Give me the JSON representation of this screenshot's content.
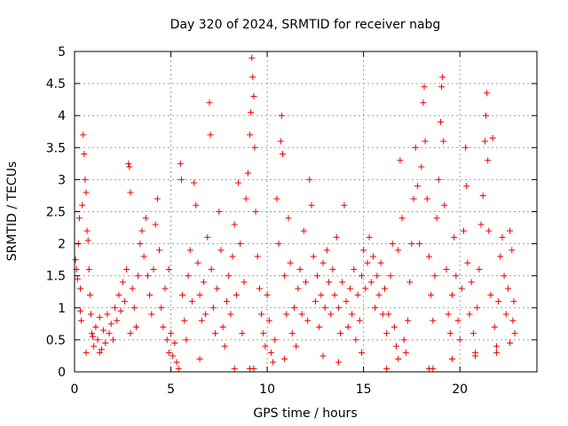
{
  "chart_data": {
    "type": "scatter",
    "title": "Day 320 of 2024, SRMTID for receiver nabg",
    "xlabel": "GPS time / hours",
    "ylabel": "SRMTID / TECUs",
    "xlim": [
      0,
      24
    ],
    "ylim": [
      0,
      5
    ],
    "xticks": [
      0,
      5,
      10,
      15,
      20
    ],
    "yticks": [
      0,
      0.5,
      1,
      1.5,
      2,
      2.5,
      3,
      3.5,
      4,
      4.5,
      5
    ],
    "xtick_labels": [
      "0",
      "5",
      "10",
      "15",
      "20"
    ],
    "ytick_labels": [
      "0",
      "0.5",
      "1",
      "1.5",
      "2",
      "2.5",
      "3",
      "3.5",
      "4",
      "4.5",
      "5"
    ],
    "grid": true,
    "marker": "plus",
    "color": "#ee0000",
    "series": [
      {
        "name": "SRMTID",
        "points": [
          [
            0.05,
            1.75
          ],
          [
            0.1,
            1.6
          ],
          [
            0.15,
            1.45
          ],
          [
            0.2,
            2.0
          ],
          [
            0.25,
            2.4
          ],
          [
            0.3,
            1.3
          ],
          [
            0.35,
            0.8
          ],
          [
            0.4,
            2.6
          ],
          [
            0.45,
            3.7
          ],
          [
            0.5,
            3.4
          ],
          [
            0.55,
            3.0
          ],
          [
            0.6,
            2.8
          ],
          [
            0.65,
            2.2
          ],
          [
            0.7,
            2.05
          ],
          [
            0.75,
            1.6
          ],
          [
            0.8,
            1.2
          ],
          [
            0.85,
            0.9
          ],
          [
            0.9,
            0.6
          ],
          [
            0.95,
            0.55
          ],
          [
            1.0,
            0.4
          ],
          [
            1.1,
            0.7
          ],
          [
            1.2,
            0.5
          ],
          [
            1.3,
            0.85
          ],
          [
            1.4,
            0.35
          ],
          [
            1.5,
            0.65
          ],
          [
            1.6,
            0.45
          ],
          [
            1.7,
            0.9
          ],
          [
            1.8,
            0.6
          ],
          [
            1.9,
            0.75
          ],
          [
            2.0,
            0.5
          ],
          [
            2.1,
            1.0
          ],
          [
            2.2,
            0.8
          ],
          [
            2.3,
            1.2
          ],
          [
            2.4,
            0.95
          ],
          [
            2.5,
            1.4
          ],
          [
            2.6,
            1.1
          ],
          [
            2.7,
            1.6
          ],
          [
            2.8,
            3.25
          ],
          [
            2.85,
            3.2
          ],
          [
            2.9,
            2.8
          ],
          [
            3.0,
            1.3
          ],
          [
            3.1,
            1.0
          ],
          [
            3.2,
            0.7
          ],
          [
            3.3,
            1.5
          ],
          [
            3.4,
            2.0
          ],
          [
            3.5,
            2.2
          ],
          [
            3.6,
            1.8
          ],
          [
            3.7,
            2.4
          ],
          [
            3.8,
            1.5
          ],
          [
            3.9,
            1.2
          ],
          [
            4.0,
            0.9
          ],
          [
            4.1,
            1.6
          ],
          [
            4.2,
            2.3
          ],
          [
            4.3,
            2.7
          ],
          [
            4.4,
            1.9
          ],
          [
            4.5,
            1.0
          ],
          [
            4.6,
            0.7
          ],
          [
            4.7,
            1.3
          ],
          [
            4.8,
            0.5
          ],
          [
            4.9,
            0.3
          ],
          [
            5.0,
            0.6
          ],
          [
            5.1,
            0.25
          ],
          [
            5.2,
            0.45
          ],
          [
            5.3,
            0.15
          ],
          [
            5.4,
            0.05
          ],
          [
            5.5,
            3.25
          ],
          [
            5.55,
            3.0
          ],
          [
            5.6,
            1.2
          ],
          [
            5.7,
            0.8
          ],
          [
            5.8,
            0.5
          ],
          [
            5.9,
            1.5
          ],
          [
            6.0,
            1.9
          ],
          [
            6.1,
            1.1
          ],
          [
            6.2,
            2.95
          ],
          [
            6.3,
            2.6
          ],
          [
            6.4,
            1.7
          ],
          [
            6.5,
            1.2
          ],
          [
            6.6,
            0.8
          ],
          [
            6.7,
            1.4
          ],
          [
            6.8,
            0.9
          ],
          [
            6.9,
            2.1
          ],
          [
            7.0,
            4.2
          ],
          [
            7.05,
            3.7
          ],
          [
            7.1,
            1.6
          ],
          [
            7.2,
            1.0
          ],
          [
            7.3,
            0.6
          ],
          [
            7.4,
            1.3
          ],
          [
            7.5,
            2.5
          ],
          [
            7.6,
            1.9
          ],
          [
            7.7,
            0.7
          ],
          [
            7.8,
            0.4
          ],
          [
            7.9,
            1.1
          ],
          [
            8.0,
            1.5
          ],
          [
            8.1,
            0.9
          ],
          [
            8.2,
            1.8
          ],
          [
            8.3,
            2.3
          ],
          [
            8.4,
            1.2
          ],
          [
            8.5,
            2.95
          ],
          [
            8.6,
            2.0
          ],
          [
            8.7,
            0.6
          ],
          [
            8.8,
            1.4
          ],
          [
            8.9,
            2.7
          ],
          [
            9.0,
            3.1
          ],
          [
            9.1,
            3.7
          ],
          [
            9.15,
            4.05
          ],
          [
            9.2,
            4.9
          ],
          [
            9.25,
            4.6
          ],
          [
            9.3,
            4.3
          ],
          [
            9.35,
            3.5
          ],
          [
            9.4,
            2.5
          ],
          [
            9.5,
            1.8
          ],
          [
            9.6,
            1.3
          ],
          [
            9.7,
            0.9
          ],
          [
            9.8,
            0.6
          ],
          [
            9.9,
            0.4
          ],
          [
            10.0,
            1.2
          ],
          [
            10.1,
            0.8
          ],
          [
            10.2,
            0.3
          ],
          [
            10.3,
            0.15
          ],
          [
            10.4,
            0.5
          ],
          [
            10.5,
            2.7
          ],
          [
            10.6,
            2.0
          ],
          [
            10.7,
            3.6
          ],
          [
            10.75,
            4.0
          ],
          [
            10.8,
            3.4
          ],
          [
            10.9,
            1.5
          ],
          [
            11.0,
            0.9
          ],
          [
            11.1,
            2.4
          ],
          [
            11.2,
            1.7
          ],
          [
            11.3,
            0.6
          ],
          [
            11.4,
            1.0
          ],
          [
            11.5,
            0.4
          ],
          [
            11.6,
            1.3
          ],
          [
            11.7,
            1.6
          ],
          [
            11.8,
            0.9
          ],
          [
            11.9,
            2.2
          ],
          [
            12.0,
            1.4
          ],
          [
            12.1,
            0.8
          ],
          [
            12.2,
            3.0
          ],
          [
            12.3,
            2.6
          ],
          [
            12.4,
            1.8
          ],
          [
            12.5,
            1.1
          ],
          [
            12.6,
            1.5
          ],
          [
            12.7,
            0.7
          ],
          [
            12.8,
            1.2
          ],
          [
            12.9,
            1.7
          ],
          [
            13.0,
            1.0
          ],
          [
            13.1,
            1.9
          ],
          [
            13.2,
            1.4
          ],
          [
            13.3,
            0.9
          ],
          [
            13.4,
            1.6
          ],
          [
            13.5,
            1.2
          ],
          [
            13.6,
            2.1
          ],
          [
            13.7,
            1.0
          ],
          [
            13.8,
            0.6
          ],
          [
            13.9,
            1.4
          ],
          [
            14.0,
            2.6
          ],
          [
            14.1,
            1.1
          ],
          [
            14.2,
            0.7
          ],
          [
            14.3,
            1.3
          ],
          [
            14.4,
            0.9
          ],
          [
            14.5,
            1.6
          ],
          [
            14.6,
            0.5
          ],
          [
            14.7,
            1.2
          ],
          [
            14.8,
            0.8
          ],
          [
            14.9,
            1.5
          ],
          [
            15.0,
            1.9
          ],
          [
            15.1,
            1.3
          ],
          [
            15.2,
            1.7
          ],
          [
            15.3,
            2.1
          ],
          [
            15.4,
            1.4
          ],
          [
            15.5,
            1.8
          ],
          [
            15.6,
            1.0
          ],
          [
            15.7,
            1.5
          ],
          [
            15.8,
            1.2
          ],
          [
            15.9,
            1.7
          ],
          [
            16.0,
            0.9
          ],
          [
            16.1,
            1.3
          ],
          [
            16.2,
            0.6
          ],
          [
            16.3,
            0.9
          ],
          [
            16.4,
            1.5
          ],
          [
            16.5,
            2.0
          ],
          [
            16.6,
            0.7
          ],
          [
            16.7,
            0.4
          ],
          [
            16.8,
            1.9
          ],
          [
            16.9,
            3.3
          ],
          [
            17.0,
            2.4
          ],
          [
            17.1,
            0.5
          ],
          [
            17.2,
            0.3
          ],
          [
            17.3,
            0.8
          ],
          [
            17.4,
            1.4
          ],
          [
            17.5,
            2.0
          ],
          [
            17.6,
            2.7
          ],
          [
            17.7,
            3.5
          ],
          [
            17.8,
            2.9
          ],
          [
            17.9,
            2.0
          ],
          [
            18.0,
            3.2
          ],
          [
            18.1,
            4.2
          ],
          [
            18.15,
            4.45
          ],
          [
            18.2,
            3.6
          ],
          [
            18.3,
            2.7
          ],
          [
            18.4,
            1.8
          ],
          [
            18.5,
            1.2
          ],
          [
            18.6,
            0.8
          ],
          [
            18.7,
            1.5
          ],
          [
            18.8,
            2.4
          ],
          [
            18.9,
            3.0
          ],
          [
            19.0,
            3.9
          ],
          [
            19.05,
            4.45
          ],
          [
            19.1,
            4.6
          ],
          [
            19.15,
            3.6
          ],
          [
            19.2,
            2.6
          ],
          [
            19.3,
            1.6
          ],
          [
            19.4,
            0.9
          ],
          [
            19.5,
            0.6
          ],
          [
            19.6,
            1.2
          ],
          [
            19.7,
            2.1
          ],
          [
            19.8,
            1.5
          ],
          [
            19.9,
            0.8
          ],
          [
            20.0,
            0.5
          ],
          [
            20.1,
            1.3
          ],
          [
            20.2,
            2.2
          ],
          [
            20.3,
            3.5
          ],
          [
            20.35,
            2.9
          ],
          [
            20.4,
            1.7
          ],
          [
            20.5,
            0.9
          ],
          [
            20.6,
            1.4
          ],
          [
            20.7,
            0.6
          ],
          [
            20.8,
            0.3
          ],
          [
            20.9,
            1.0
          ],
          [
            21.0,
            1.6
          ],
          [
            21.1,
            2.3
          ],
          [
            21.2,
            2.75
          ],
          [
            21.3,
            3.6
          ],
          [
            21.35,
            4.0
          ],
          [
            21.4,
            4.35
          ],
          [
            21.45,
            3.3
          ],
          [
            21.5,
            2.2
          ],
          [
            21.6,
            1.2
          ],
          [
            21.7,
            3.65
          ],
          [
            21.8,
            0.7
          ],
          [
            21.9,
            0.4
          ],
          [
            22.0,
            1.1
          ],
          [
            22.1,
            1.8
          ],
          [
            22.2,
            2.1
          ],
          [
            22.3,
            1.5
          ],
          [
            22.4,
            0.9
          ],
          [
            22.5,
            1.3
          ],
          [
            22.6,
            2.2
          ],
          [
            22.7,
            1.9
          ],
          [
            22.75,
            0.8
          ],
          [
            22.8,
            1.1
          ],
          [
            22.85,
            0.6
          ],
          [
            0.3,
            0.95
          ],
          [
            0.6,
            0.3
          ],
          [
            1.3,
            0.3
          ],
          [
            2.9,
            0.6
          ],
          [
            4.9,
            1.6
          ],
          [
            6.5,
            0.2
          ],
          [
            8.3,
            0.05
          ],
          [
            9.1,
            0.05
          ],
          [
            9.3,
            0.05
          ],
          [
            10.9,
            0.2
          ],
          [
            12.9,
            0.25
          ],
          [
            13.7,
            0.15
          ],
          [
            14.9,
            0.3
          ],
          [
            16.2,
            0.05
          ],
          [
            16.8,
            0.2
          ],
          [
            18.4,
            0.05
          ],
          [
            18.6,
            0.05
          ],
          [
            19.6,
            0.2
          ],
          [
            20.8,
            0.25
          ],
          [
            21.9,
            0.3
          ],
          [
            22.6,
            0.45
          ]
        ]
      }
    ]
  }
}
